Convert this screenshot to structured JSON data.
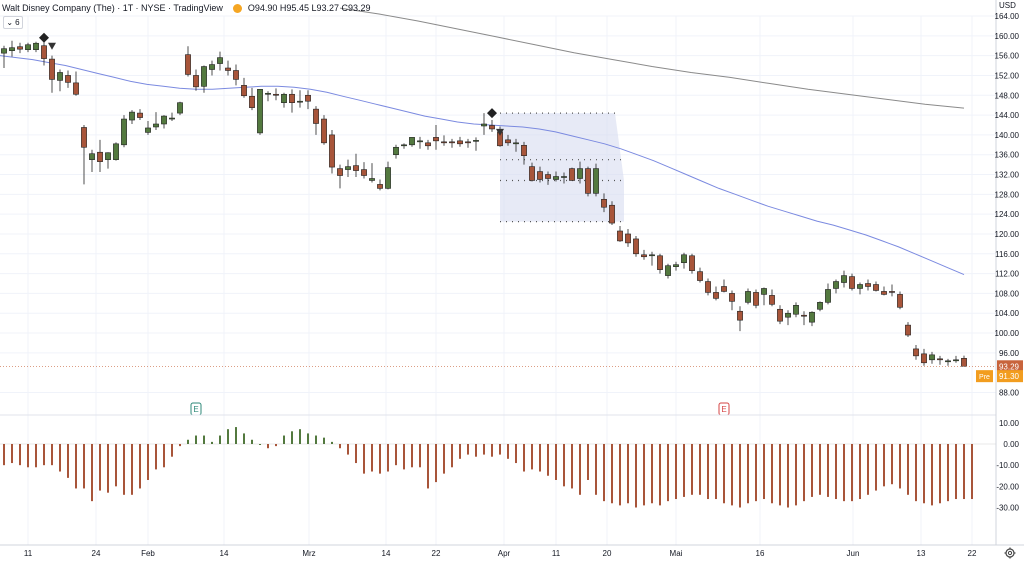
{
  "header": {
    "title": "Walt Disney Company (The) · 1T · NYSE · TradingView",
    "ohlc": "O94.90 H95.45 L93.27 C93.29",
    "currency": "USD",
    "interval_value": "6"
  },
  "colors": {
    "up": "#53793f",
    "down": "#a8553a",
    "ma_fast": "#7b8ae0",
    "ma_slow": "#8a8a8a",
    "projection": "#d7dcf0",
    "last_price_bg": "#c8643c",
    "pre_price_bg": "#f29d1f"
  },
  "chart_data": {
    "type": "candlestick",
    "price_axis": {
      "ylim": [
        86,
        166
      ],
      "tick_labels": [
        "164.00",
        "160.00",
        "156.00",
        "152.00",
        "148.00",
        "144.00",
        "140.00",
        "136.00",
        "132.00",
        "128.00",
        "124.00",
        "120.00",
        "116.00",
        "112.00",
        "108.00",
        "104.00",
        "100.00",
        "96.00",
        "88.00"
      ]
    },
    "time_axis": {
      "tick_labels": [
        "11",
        "24",
        "Feb",
        "14",
        "Mrz",
        "14",
        "22",
        "Apr",
        "11",
        "20",
        "Mai",
        "16",
        "Jun",
        "13",
        "22"
      ]
    },
    "candles": [
      {
        "o": 156.5,
        "h": 158.0,
        "l": 153.5,
        "c": 157.4
      },
      {
        "o": 157.0,
        "h": 159.0,
        "l": 155.8,
        "c": 157.6
      },
      {
        "o": 157.8,
        "h": 158.6,
        "l": 156.5,
        "c": 157.3
      },
      {
        "o": 157.2,
        "h": 158.6,
        "l": 156.7,
        "c": 158.2
      },
      {
        "o": 157.2,
        "h": 158.8,
        "l": 156.7,
        "c": 158.5
      },
      {
        "o": 158.0,
        "h": 159.8,
        "l": 154.0,
        "c": 155.4
      },
      {
        "o": 155.3,
        "h": 156.0,
        "l": 148.5,
        "c": 151.2
      },
      {
        "o": 151.0,
        "h": 153.2,
        "l": 148.8,
        "c": 152.6
      },
      {
        "o": 152.0,
        "h": 153.0,
        "l": 149.5,
        "c": 150.6
      },
      {
        "o": 150.5,
        "h": 152.8,
        "l": 147.9,
        "c": 148.2
      },
      {
        "o": 141.5,
        "h": 142.0,
        "l": 130.0,
        "c": 137.5
      },
      {
        "o": 135.0,
        "h": 137.0,
        "l": 132.5,
        "c": 136.2
      },
      {
        "o": 136.5,
        "h": 139.0,
        "l": 132.5,
        "c": 134.6
      },
      {
        "o": 135.0,
        "h": 136.5,
        "l": 133.2,
        "c": 136.4
      },
      {
        "o": 135.0,
        "h": 138.5,
        "l": 134.8,
        "c": 138.2
      },
      {
        "o": 138.0,
        "h": 144.0,
        "l": 137.5,
        "c": 143.2
      },
      {
        "o": 143.0,
        "h": 145.0,
        "l": 142.2,
        "c": 144.6
      },
      {
        "o": 144.4,
        "h": 145.2,
        "l": 143.0,
        "c": 143.5
      },
      {
        "o": 140.5,
        "h": 142.8,
        "l": 140.0,
        "c": 141.4
      },
      {
        "o": 141.6,
        "h": 144.6,
        "l": 141.0,
        "c": 142.2
      },
      {
        "o": 142.2,
        "h": 144.0,
        "l": 141.3,
        "c": 143.8
      },
      {
        "o": 143.2,
        "h": 144.5,
        "l": 142.8,
        "c": 143.4
      },
      {
        "o": 144.4,
        "h": 146.7,
        "l": 144.0,
        "c": 146.5
      },
      {
        "o": 156.2,
        "h": 157.9,
        "l": 151.8,
        "c": 152.2
      },
      {
        "o": 152.0,
        "h": 153.2,
        "l": 148.9,
        "c": 149.7
      },
      {
        "o": 149.8,
        "h": 154.0,
        "l": 148.5,
        "c": 153.8
      },
      {
        "o": 153.2,
        "h": 155.0,
        "l": 152.0,
        "c": 154.2
      },
      {
        "o": 154.4,
        "h": 156.8,
        "l": 153.0,
        "c": 155.6
      },
      {
        "o": 153.5,
        "h": 155.0,
        "l": 152.0,
        "c": 153.0
      },
      {
        "o": 153.0,
        "h": 154.2,
        "l": 150.0,
        "c": 151.2
      },
      {
        "o": 150.0,
        "h": 151.5,
        "l": 147.5,
        "c": 147.9
      },
      {
        "o": 147.8,
        "h": 149.5,
        "l": 145.0,
        "c": 145.5
      },
      {
        "o": 140.4,
        "h": 149.0,
        "l": 140.0,
        "c": 149.2
      },
      {
        "o": 148.2,
        "h": 148.8,
        "l": 146.8,
        "c": 148.4
      },
      {
        "o": 148.2,
        "h": 149.4,
        "l": 147.0,
        "c": 148.0
      },
      {
        "o": 146.5,
        "h": 148.5,
        "l": 145.5,
        "c": 148.2
      },
      {
        "o": 148.2,
        "h": 149.2,
        "l": 144.5,
        "c": 146.5
      },
      {
        "o": 146.6,
        "h": 149.0,
        "l": 145.5,
        "c": 146.8
      },
      {
        "o": 148.0,
        "h": 149.0,
        "l": 145.2,
        "c": 146.8
      },
      {
        "o": 145.2,
        "h": 145.8,
        "l": 140.0,
        "c": 142.3
      },
      {
        "o": 143.2,
        "h": 144.0,
        "l": 138.0,
        "c": 138.4
      },
      {
        "o": 140.0,
        "h": 141.0,
        "l": 132.2,
        "c": 133.5
      },
      {
        "o": 133.2,
        "h": 134.0,
        "l": 129.2,
        "c": 131.8
      },
      {
        "o": 133.0,
        "h": 135.0,
        "l": 131.5,
        "c": 133.6
      },
      {
        "o": 133.8,
        "h": 136.2,
        "l": 131.5,
        "c": 132.8
      },
      {
        "o": 133.0,
        "h": 134.5,
        "l": 131.2,
        "c": 131.8
      },
      {
        "o": 130.8,
        "h": 134.3,
        "l": 130.4,
        "c": 131.2
      },
      {
        "o": 130.0,
        "h": 131.0,
        "l": 128.8,
        "c": 129.2
      },
      {
        "o": 129.2,
        "h": 134.6,
        "l": 129.0,
        "c": 133.4
      },
      {
        "o": 136.0,
        "h": 138.0,
        "l": 135.2,
        "c": 137.5
      },
      {
        "o": 137.8,
        "h": 138.3,
        "l": 137.2,
        "c": 138.0
      },
      {
        "o": 138.0,
        "h": 139.5,
        "l": 137.6,
        "c": 139.5
      },
      {
        "o": 138.6,
        "h": 139.6,
        "l": 137.2,
        "c": 138.8
      },
      {
        "o": 138.4,
        "h": 139.0,
        "l": 137.0,
        "c": 137.8
      },
      {
        "o": 139.5,
        "h": 142.0,
        "l": 137.0,
        "c": 138.8
      },
      {
        "o": 138.6,
        "h": 139.9,
        "l": 137.8,
        "c": 138.4
      },
      {
        "o": 138.6,
        "h": 139.2,
        "l": 137.4,
        "c": 138.5
      },
      {
        "o": 138.8,
        "h": 139.6,
        "l": 137.6,
        "c": 138.2
      },
      {
        "o": 138.6,
        "h": 139.2,
        "l": 137.4,
        "c": 138.4
      },
      {
        "o": 138.8,
        "h": 139.5,
        "l": 136.8,
        "c": 138.9
      },
      {
        "o": 141.8,
        "h": 144.4,
        "l": 140.0,
        "c": 142.2
      },
      {
        "o": 141.9,
        "h": 143.0,
        "l": 140.6,
        "c": 141.2
      },
      {
        "o": 140.6,
        "h": 141.7,
        "l": 137.6,
        "c": 137.8
      },
      {
        "o": 139.0,
        "h": 140.0,
        "l": 137.8,
        "c": 138.4
      },
      {
        "o": 138.4,
        "h": 139.2,
        "l": 136.6,
        "c": 138.4
      },
      {
        "o": 137.9,
        "h": 138.6,
        "l": 134.0,
        "c": 135.8
      },
      {
        "o": 133.6,
        "h": 134.4,
        "l": 130.6,
        "c": 130.8
      },
      {
        "o": 132.6,
        "h": 133.6,
        "l": 130.4,
        "c": 131.0
      },
      {
        "o": 132.0,
        "h": 132.6,
        "l": 129.9,
        "c": 131.2
      },
      {
        "o": 131.0,
        "h": 132.6,
        "l": 130.6,
        "c": 131.6
      },
      {
        "o": 131.4,
        "h": 132.4,
        "l": 130.2,
        "c": 131.6
      },
      {
        "o": 133.2,
        "h": 133.4,
        "l": 130.8,
        "c": 130.8
      },
      {
        "o": 131.2,
        "h": 134.6,
        "l": 130.2,
        "c": 133.2
      },
      {
        "o": 133.2,
        "h": 133.6,
        "l": 127.6,
        "c": 128.2
      },
      {
        "o": 128.2,
        "h": 134.2,
        "l": 127.6,
        "c": 133.2
      },
      {
        "o": 127.0,
        "h": 128.2,
        "l": 124.4,
        "c": 125.4
      },
      {
        "o": 125.8,
        "h": 126.6,
        "l": 121.8,
        "c": 122.2
      },
      {
        "o": 120.6,
        "h": 121.6,
        "l": 118.4,
        "c": 118.6
      },
      {
        "o": 120.0,
        "h": 121.0,
        "l": 117.4,
        "c": 118.2
      },
      {
        "o": 119.0,
        "h": 119.6,
        "l": 115.4,
        "c": 116.0
      },
      {
        "o": 115.8,
        "h": 116.8,
        "l": 114.8,
        "c": 115.4
      },
      {
        "o": 115.8,
        "h": 116.4,
        "l": 113.6,
        "c": 115.8
      },
      {
        "o": 115.6,
        "h": 116.0,
        "l": 112.0,
        "c": 112.8
      },
      {
        "o": 111.6,
        "h": 114.0,
        "l": 111.0,
        "c": 113.6
      },
      {
        "o": 113.4,
        "h": 114.4,
        "l": 112.6,
        "c": 113.8
      },
      {
        "o": 114.2,
        "h": 116.2,
        "l": 113.0,
        "c": 115.8
      },
      {
        "o": 115.6,
        "h": 116.0,
        "l": 112.0,
        "c": 112.6
      },
      {
        "o": 112.4,
        "h": 113.2,
        "l": 110.2,
        "c": 110.6
      },
      {
        "o": 110.4,
        "h": 111.0,
        "l": 107.6,
        "c": 108.2
      },
      {
        "o": 108.2,
        "h": 109.4,
        "l": 106.6,
        "c": 107.0
      },
      {
        "o": 109.4,
        "h": 110.8,
        "l": 108.2,
        "c": 108.4
      },
      {
        "o": 108.0,
        "h": 108.6,
        "l": 104.6,
        "c": 106.4
      },
      {
        "o": 104.4,
        "h": 105.4,
        "l": 100.4,
        "c": 102.6
      },
      {
        "o": 106.2,
        "h": 109.0,
        "l": 105.8,
        "c": 108.4
      },
      {
        "o": 108.2,
        "h": 108.8,
        "l": 105.0,
        "c": 105.6
      },
      {
        "o": 107.8,
        "h": 109.2,
        "l": 105.6,
        "c": 109.0
      },
      {
        "o": 107.6,
        "h": 108.8,
        "l": 105.4,
        "c": 105.8
      },
      {
        "o": 104.8,
        "h": 105.6,
        "l": 101.8,
        "c": 102.4
      },
      {
        "o": 103.2,
        "h": 104.6,
        "l": 101.6,
        "c": 104.0
      },
      {
        "o": 103.8,
        "h": 106.2,
        "l": 103.2,
        "c": 105.6
      },
      {
        "o": 103.6,
        "h": 104.4,
        "l": 101.6,
        "c": 103.4
      },
      {
        "o": 102.2,
        "h": 104.4,
        "l": 101.4,
        "c": 104.2
      },
      {
        "o": 104.8,
        "h": 106.4,
        "l": 104.4,
        "c": 106.2
      },
      {
        "o": 106.2,
        "h": 110.0,
        "l": 105.8,
        "c": 108.8
      },
      {
        "o": 109.0,
        "h": 110.8,
        "l": 108.0,
        "c": 110.4
      },
      {
        "o": 110.2,
        "h": 112.6,
        "l": 109.2,
        "c": 111.6
      },
      {
        "o": 111.4,
        "h": 112.0,
        "l": 108.6,
        "c": 109.0
      },
      {
        "o": 109.0,
        "h": 110.2,
        "l": 107.8,
        "c": 109.8
      },
      {
        "o": 110.0,
        "h": 110.8,
        "l": 108.6,
        "c": 109.4
      },
      {
        "o": 109.8,
        "h": 110.4,
        "l": 108.4,
        "c": 108.6
      },
      {
        "o": 108.4,
        "h": 109.4,
        "l": 107.6,
        "c": 107.8
      },
      {
        "o": 108.4,
        "h": 109.8,
        "l": 107.4,
        "c": 108.2
      },
      {
        "o": 107.8,
        "h": 108.4,
        "l": 104.8,
        "c": 105.2
      },
      {
        "o": 101.6,
        "h": 102.2,
        "l": 99.2,
        "c": 99.6
      },
      {
        "o": 96.8,
        "h": 97.6,
        "l": 94.6,
        "c": 95.4
      },
      {
        "o": 95.8,
        "h": 96.8,
        "l": 93.4,
        "c": 94.0
      },
      {
        "o": 94.6,
        "h": 96.2,
        "l": 93.8,
        "c": 95.6
      },
      {
        "o": 94.8,
        "h": 95.4,
        "l": 93.6,
        "c": 94.6
      },
      {
        "o": 94.4,
        "h": 94.8,
        "l": 93.4,
        "c": 94.4
      },
      {
        "o": 94.6,
        "h": 95.4,
        "l": 94.0,
        "c": 94.6
      },
      {
        "o": 94.9,
        "h": 95.45,
        "l": 93.27,
        "c": 93.29
      }
    ],
    "ma_fast": [
      156,
      155.6,
      155.2,
      154.6,
      154,
      153.2,
      152.4,
      151.6,
      150.8,
      150.2,
      149.8,
      149.4,
      149.2,
      149.2,
      149.4,
      149.6,
      149.8,
      149.8,
      149.6,
      149.2,
      148.6,
      147.8,
      147,
      146.2,
      145.4,
      144.6,
      143.8,
      143.2,
      142.6,
      142.2,
      142,
      141.8,
      141.6,
      141.2,
      140.6,
      139.8,
      139,
      138.2,
      137.2,
      136,
      134.8,
      133.4,
      132,
      130.6,
      129.2,
      128,
      126.8,
      125.6,
      124.6,
      123.6,
      122.6,
      121.8,
      120.8,
      119.8,
      118.6,
      117.4,
      116,
      114.6,
      113.2,
      111.8
    ],
    "ma_slow": [
      165.6,
      164.4,
      163,
      161.4,
      159.8,
      158.2,
      156.6,
      155.2,
      153.8,
      152.6,
      151.6,
      150.4,
      149.2,
      148.2,
      147.2,
      146.2,
      145.4
    ],
    "projection": {
      "from": 122.5,
      "to": 144.4,
      "mid": 130.8,
      "upper": 135.0
    },
    "last_price": {
      "label": "93.29",
      "value": 93.29
    },
    "pre_price": {
      "label": "Pre",
      "value": "91.30"
    },
    "signals": [
      {
        "type": "buy",
        "value": 159.6,
        "candle": 5
      },
      {
        "type": "sell",
        "value": 158.0,
        "candle": 6
      },
      {
        "type": "buy",
        "value": 144.4,
        "candle": 61
      },
      {
        "type": "sell",
        "value": 140.6,
        "candle": 62
      }
    ],
    "events": [
      {
        "label": "E",
        "type": "earnings-past",
        "candle": 24
      },
      {
        "label": "E",
        "type": "earnings-next",
        "candle": 90
      }
    ],
    "indicator": {
      "ylim": [
        -35,
        14
      ],
      "tick_labels": [
        "10.00",
        "0.00",
        "-10.00",
        "-20.00",
        "-30.00"
      ],
      "values": [
        -10,
        -9,
        -10,
        -11,
        -11,
        -10,
        -10,
        -13,
        -16,
        -21,
        -21,
        -27,
        -22,
        -23,
        -20,
        -24,
        -24,
        -21,
        -17,
        -12,
        -11,
        -6,
        -1,
        2,
        4,
        4,
        1,
        4,
        7,
        8,
        5,
        2,
        0,
        -2,
        -1,
        4,
        6,
        7,
        5,
        4,
        3,
        1,
        -2,
        -5,
        -9,
        -14,
        -13,
        -14,
        -13,
        -10,
        -12,
        -11,
        -11,
        -21,
        -18,
        -14,
        -11,
        -7,
        -5,
        -6,
        -5,
        -6,
        -5,
        -7,
        -9,
        -13,
        -12,
        -13,
        -15,
        -17,
        -20,
        -21,
        -24,
        -17,
        -24,
        -27,
        -28,
        -29,
        -28,
        -30,
        -29,
        -28,
        -29,
        -27,
        -26,
        -25,
        -24,
        -24,
        -26,
        -26,
        -28,
        -29,
        -30,
        -28,
        -27,
        -26,
        -28,
        -29,
        -30,
        -29,
        -27,
        -25,
        -24,
        -25,
        -26,
        -27,
        -27,
        -26,
        -24,
        -22,
        -20,
        -19,
        -21,
        -24,
        -27,
        -28,
        -29,
        -28,
        -27,
        -26,
        -26,
        -26
      ]
    }
  }
}
